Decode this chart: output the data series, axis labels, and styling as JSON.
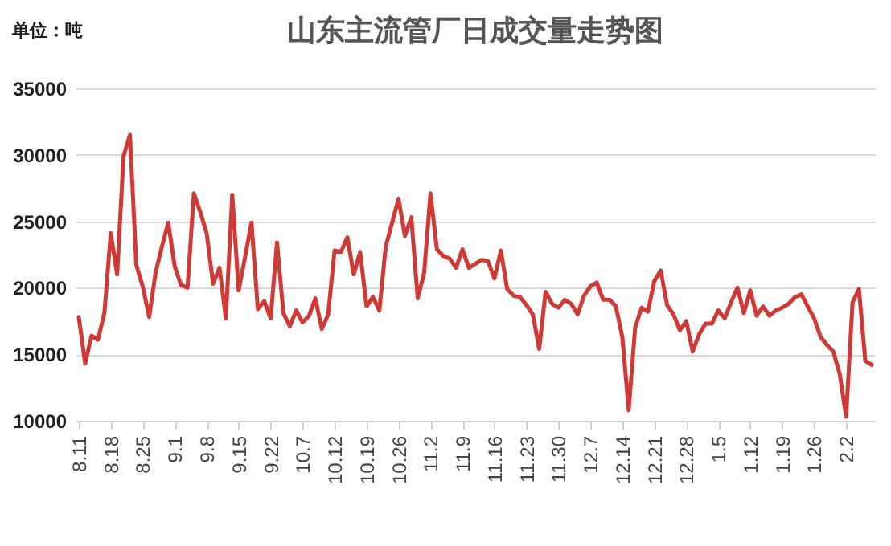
{
  "chart_data": {
    "type": "line",
    "title": "山东主流管厂日成交量走势图",
    "ylabel": "单位：吨",
    "categories": [
      "8.11",
      null,
      null,
      null,
      null,
      "8.18",
      null,
      null,
      null,
      null,
      "8.25",
      null,
      null,
      null,
      null,
      "9.1",
      null,
      null,
      null,
      null,
      "9.8",
      null,
      null,
      null,
      null,
      "9.15",
      null,
      null,
      null,
      null,
      "9.22",
      null,
      null,
      null,
      null,
      "10.7",
      null,
      null,
      null,
      null,
      "10.12",
      null,
      null,
      null,
      null,
      "10.19",
      null,
      null,
      null,
      null,
      "10.26",
      null,
      null,
      null,
      null,
      "11.2",
      null,
      null,
      null,
      null,
      "11.9",
      null,
      null,
      null,
      null,
      "11.16",
      null,
      null,
      null,
      null,
      "11.23",
      null,
      null,
      null,
      null,
      "11.30",
      null,
      null,
      null,
      null,
      "12.7",
      null,
      null,
      null,
      null,
      "12.14",
      null,
      null,
      null,
      null,
      "12.21",
      null,
      null,
      null,
      null,
      "12.28",
      null,
      null,
      null,
      null,
      "1.5",
      null,
      null,
      null,
      null,
      "1.12",
      null,
      null,
      null,
      null,
      "1.19",
      null,
      null,
      null,
      null,
      "1.26",
      null,
      null,
      null,
      null,
      "2.2",
      null,
      null,
      null,
      null
    ],
    "series": [
      {
        "color": "#d03a36",
        "values": [
          17800,
          14300,
          16400,
          16100,
          18100,
          24100,
          21000,
          29900,
          31500,
          21700,
          20100,
          17800,
          21100,
          23100,
          24900,
          21600,
          20200,
          20000,
          27100,
          25700,
          24100,
          20300,
          21500,
          17700,
          27000,
          19800,
          22300,
          24900,
          18400,
          19000,
          17700,
          23400,
          18100,
          17100,
          18300,
          17400,
          17900,
          19200,
          16900,
          18000,
          22800,
          22700,
          23800,
          21000,
          22700,
          18600,
          19300,
          18300,
          23100,
          24900,
          26700,
          23900,
          25300,
          19200,
          21100,
          27100,
          22900,
          22400,
          22200,
          21500,
          22900,
          21500,
          21800,
          22100,
          22000,
          20700,
          22800,
          19900,
          19400,
          19300,
          18700,
          18000,
          15400,
          19700,
          18800,
          18500,
          19100,
          18800,
          18000,
          19400,
          20100,
          20400,
          19100,
          19100,
          18600,
          16300,
          10800,
          17000,
          18500,
          18200,
          20500,
          21300,
          18700,
          18000,
          16800,
          17500,
          15200,
          16500,
          17300,
          17300,
          18300,
          17700,
          18900,
          20000,
          18100,
          19800,
          17900,
          18600,
          17900,
          18300,
          18500,
          18800,
          19300,
          19500,
          18600,
          17700,
          16300,
          15700,
          15200,
          13500,
          10300,
          18900,
          19900,
          14500,
          14200
        ]
      }
    ],
    "ylim": [
      10000,
      35000
    ],
    "yticks": [
      10000,
      15000,
      20000,
      25000,
      30000,
      35000
    ],
    "grid": "y",
    "line_style": "solid",
    "marker": "none"
  }
}
